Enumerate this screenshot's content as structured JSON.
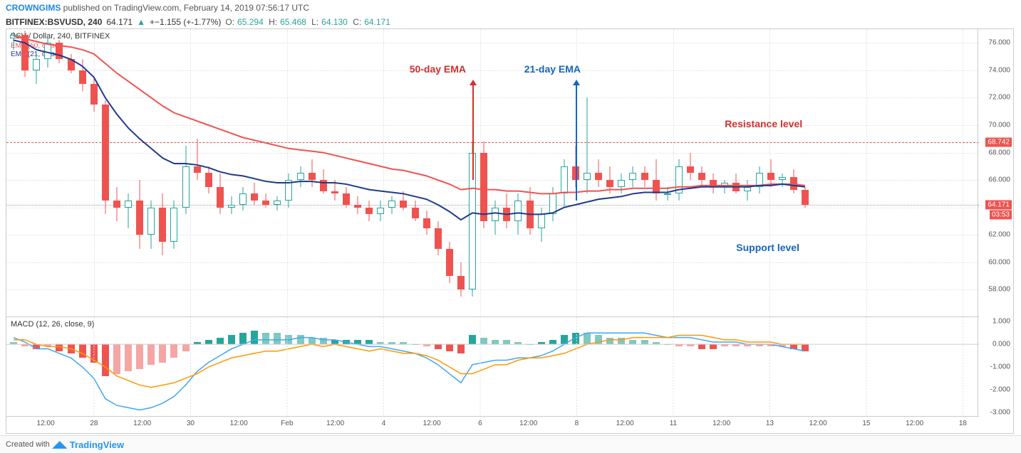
{
  "header": {
    "user": "CROWNGIMS",
    "published_text": "published on TradingView.com,",
    "date": "February 14, 2019 07:56:17 UTC"
  },
  "ticker": {
    "symbol": "BITFINEX:BSVUSD, 240",
    "price": "64.171",
    "change": "+−1.155 (+-1.77%)",
    "o_label": "O:",
    "o": "65.294",
    "h_label": "H:",
    "h": "65.468",
    "l_label": "L:",
    "l": "64.130",
    "c_label": "C:",
    "c": "64.171"
  },
  "price_pane": {
    "title": "BSV / Dollar, 240, BITFINEX",
    "ema50_label": "EMA (50, close)",
    "ema21_label": "EMA (21, close)",
    "ylim": [
      56,
      77
    ],
    "yticks": [
      58,
      60,
      62,
      64,
      66,
      68,
      70,
      72,
      74,
      76
    ],
    "resistance_level": 68.742,
    "current_price": 64.171,
    "countdown": "03:53",
    "grid_color": "#e0e0e0",
    "bg_color": "#ffffff",
    "candle_up_color": "#26a69a",
    "candle_down_color": "#ef5350",
    "ema50_color": "#ef5350",
    "ema21_color": "#1e3a8a",
    "candles": [
      {
        "x": 0,
        "o": 76.3,
        "h": 76.8,
        "l": 75.5,
        "c": 76.6
      },
      {
        "x": 1,
        "o": 76.6,
        "h": 76.9,
        "l": 73.5,
        "c": 74.0
      },
      {
        "x": 2,
        "o": 74.0,
        "h": 75.2,
        "l": 73.0,
        "c": 74.8
      },
      {
        "x": 3,
        "o": 74.8,
        "h": 76.4,
        "l": 74.2,
        "c": 76.0
      },
      {
        "x": 4,
        "o": 76.0,
        "h": 76.2,
        "l": 74.5,
        "c": 74.8
      },
      {
        "x": 5,
        "o": 74.8,
        "h": 75.2,
        "l": 73.8,
        "c": 74.0
      },
      {
        "x": 6,
        "o": 74.0,
        "h": 74.8,
        "l": 72.5,
        "c": 73.0
      },
      {
        "x": 7,
        "o": 73.0,
        "h": 73.5,
        "l": 71.0,
        "c": 71.5
      },
      {
        "x": 8,
        "o": 71.5,
        "h": 71.8,
        "l": 63.5,
        "c": 64.5
      },
      {
        "x": 9,
        "o": 64.5,
        "h": 65.5,
        "l": 63.0,
        "c": 64.0
      },
      {
        "x": 10,
        "o": 64.0,
        "h": 65.0,
        "l": 62.5,
        "c": 64.5
      },
      {
        "x": 11,
        "o": 64.5,
        "h": 66.0,
        "l": 61.0,
        "c": 62.0
      },
      {
        "x": 12,
        "o": 62.0,
        "h": 64.5,
        "l": 61.0,
        "c": 64.0
      },
      {
        "x": 13,
        "o": 64.0,
        "h": 65.0,
        "l": 60.5,
        "c": 61.5
      },
      {
        "x": 14,
        "o": 61.5,
        "h": 64.5,
        "l": 61.0,
        "c": 64.0
      },
      {
        "x": 15,
        "o": 64.0,
        "h": 68.5,
        "l": 63.5,
        "c": 67.0
      },
      {
        "x": 16,
        "o": 67.0,
        "h": 69.0,
        "l": 66.0,
        "c": 66.5
      },
      {
        "x": 17,
        "o": 66.5,
        "h": 67.0,
        "l": 65.0,
        "c": 65.5
      },
      {
        "x": 18,
        "o": 65.5,
        "h": 66.5,
        "l": 63.5,
        "c": 64.0
      },
      {
        "x": 19,
        "o": 64.0,
        "h": 64.8,
        "l": 63.5,
        "c": 64.2
      },
      {
        "x": 20,
        "o": 64.2,
        "h": 65.5,
        "l": 63.8,
        "c": 65.0
      },
      {
        "x": 21,
        "o": 65.0,
        "h": 65.8,
        "l": 64.2,
        "c": 64.5
      },
      {
        "x": 22,
        "o": 64.5,
        "h": 65.0,
        "l": 64.0,
        "c": 64.2
      },
      {
        "x": 23,
        "o": 64.2,
        "h": 64.8,
        "l": 63.8,
        "c": 64.5
      },
      {
        "x": 24,
        "o": 64.5,
        "h": 66.5,
        "l": 64.0,
        "c": 66.0
      },
      {
        "x": 25,
        "o": 66.0,
        "h": 67.0,
        "l": 65.5,
        "c": 66.5
      },
      {
        "x": 26,
        "o": 66.5,
        "h": 67.5,
        "l": 65.5,
        "c": 66.0
      },
      {
        "x": 27,
        "o": 66.0,
        "h": 66.8,
        "l": 65.0,
        "c": 65.2
      },
      {
        "x": 28,
        "o": 65.2,
        "h": 66.0,
        "l": 64.5,
        "c": 65.0
      },
      {
        "x": 29,
        "o": 65.0,
        "h": 65.5,
        "l": 64.0,
        "c": 64.2
      },
      {
        "x": 30,
        "o": 64.2,
        "h": 64.8,
        "l": 63.5,
        "c": 64.0
      },
      {
        "x": 31,
        "o": 64.0,
        "h": 64.5,
        "l": 63.0,
        "c": 63.5
      },
      {
        "x": 32,
        "o": 63.5,
        "h": 64.5,
        "l": 63.0,
        "c": 64.0
      },
      {
        "x": 33,
        "o": 64.0,
        "h": 64.8,
        "l": 63.5,
        "c": 64.5
      },
      {
        "x": 34,
        "o": 64.5,
        "h": 65.2,
        "l": 63.8,
        "c": 64.0
      },
      {
        "x": 35,
        "o": 64.0,
        "h": 64.5,
        "l": 63.0,
        "c": 63.2
      },
      {
        "x": 36,
        "o": 63.2,
        "h": 63.8,
        "l": 62.0,
        "c": 62.5
      },
      {
        "x": 37,
        "o": 62.5,
        "h": 63.0,
        "l": 60.5,
        "c": 61.0
      },
      {
        "x": 38,
        "o": 61.0,
        "h": 61.5,
        "l": 58.5,
        "c": 59.0
      },
      {
        "x": 39,
        "o": 59.0,
        "h": 60.0,
        "l": 57.5,
        "c": 58.0
      },
      {
        "x": 40,
        "o": 58.0,
        "h": 68.8,
        "l": 57.5,
        "c": 68.0
      },
      {
        "x": 41,
        "o": 68.0,
        "h": 68.8,
        "l": 62.5,
        "c": 63.0
      },
      {
        "x": 42,
        "o": 63.0,
        "h": 64.5,
        "l": 62.0,
        "c": 64.0
      },
      {
        "x": 43,
        "o": 64.0,
        "h": 65.0,
        "l": 62.5,
        "c": 63.0
      },
      {
        "x": 44,
        "o": 63.0,
        "h": 65.0,
        "l": 62.0,
        "c": 64.5
      },
      {
        "x": 45,
        "o": 64.5,
        "h": 65.5,
        "l": 62.0,
        "c": 62.5
      },
      {
        "x": 46,
        "o": 62.5,
        "h": 64.0,
        "l": 61.5,
        "c": 63.5
      },
      {
        "x": 47,
        "o": 63.5,
        "h": 65.5,
        "l": 63.0,
        "c": 65.0
      },
      {
        "x": 48,
        "o": 65.0,
        "h": 67.5,
        "l": 64.0,
        "c": 67.0
      },
      {
        "x": 49,
        "o": 67.0,
        "h": 68.5,
        "l": 65.5,
        "c": 66.0
      },
      {
        "x": 50,
        "o": 66.0,
        "h": 72.0,
        "l": 65.0,
        "c": 66.5
      },
      {
        "x": 51,
        "o": 66.5,
        "h": 67.5,
        "l": 65.5,
        "c": 66.0
      },
      {
        "x": 52,
        "o": 66.0,
        "h": 67.0,
        "l": 65.0,
        "c": 65.5
      },
      {
        "x": 53,
        "o": 65.5,
        "h": 66.5,
        "l": 65.0,
        "c": 66.0
      },
      {
        "x": 54,
        "o": 66.0,
        "h": 67.0,
        "l": 65.5,
        "c": 66.5
      },
      {
        "x": 55,
        "o": 66.5,
        "h": 67.0,
        "l": 65.5,
        "c": 66.0
      },
      {
        "x": 56,
        "o": 66.0,
        "h": 67.5,
        "l": 64.5,
        "c": 65.0
      },
      {
        "x": 57,
        "o": 65.0,
        "h": 65.5,
        "l": 64.5,
        "c": 65.0
      },
      {
        "x": 58,
        "o": 65.0,
        "h": 67.5,
        "l": 64.5,
        "c": 67.0
      },
      {
        "x": 59,
        "o": 67.0,
        "h": 68.0,
        "l": 66.0,
        "c": 66.5
      },
      {
        "x": 60,
        "o": 66.5,
        "h": 67.0,
        "l": 65.5,
        "c": 66.0
      },
      {
        "x": 61,
        "o": 66.0,
        "h": 66.5,
        "l": 65.0,
        "c": 65.5
      },
      {
        "x": 62,
        "o": 65.5,
        "h": 66.0,
        "l": 65.0,
        "c": 65.8
      },
      {
        "x": 63,
        "o": 65.8,
        "h": 66.5,
        "l": 65.0,
        "c": 65.2
      },
      {
        "x": 64,
        "o": 65.2,
        "h": 66.0,
        "l": 64.5,
        "c": 65.5
      },
      {
        "x": 65,
        "o": 65.5,
        "h": 67.0,
        "l": 65.0,
        "c": 66.5
      },
      {
        "x": 66,
        "o": 66.5,
        "h": 67.5,
        "l": 65.5,
        "c": 66.0
      },
      {
        "x": 67,
        "o": 66.0,
        "h": 66.5,
        "l": 65.5,
        "c": 66.2
      },
      {
        "x": 68,
        "o": 66.2,
        "h": 66.8,
        "l": 65.0,
        "c": 65.3
      },
      {
        "x": 69,
        "o": 65.3,
        "h": 65.5,
        "l": 64.0,
        "c": 64.2
      }
    ],
    "ema50": [
      76.5,
      76.3,
      76.1,
      75.9,
      75.8,
      75.7,
      75.5,
      75.2,
      74.5,
      73.8,
      73.2,
      72.6,
      72.0,
      71.4,
      70.9,
      70.6,
      70.3,
      70.0,
      69.7,
      69.4,
      69.1,
      68.9,
      68.7,
      68.5,
      68.3,
      68.2,
      68.1,
      68.0,
      67.8,
      67.6,
      67.4,
      67.2,
      67.0,
      66.8,
      66.7,
      66.5,
      66.3,
      66.0,
      65.7,
      65.3,
      65.4,
      65.3,
      65.3,
      65.2,
      65.2,
      65.1,
      65.0,
      65.0,
      65.1,
      65.1,
      65.2,
      65.2,
      65.3,
      65.3,
      65.4,
      65.4,
      65.4,
      65.4,
      65.5,
      65.5,
      65.6,
      65.6,
      65.6,
      65.6,
      65.6,
      65.6,
      65.7,
      65.7,
      65.7,
      65.6
    ],
    "ema21": [
      76.2,
      76.0,
      75.5,
      75.3,
      75.1,
      74.8,
      74.3,
      73.5,
      72.0,
      70.8,
      69.8,
      69.0,
      68.3,
      67.6,
      67.2,
      67.2,
      67.1,
      66.9,
      66.6,
      66.4,
      66.3,
      66.1,
      65.9,
      65.8,
      65.8,
      65.9,
      65.9,
      65.8,
      65.8,
      65.7,
      65.5,
      65.3,
      65.2,
      65.1,
      65.0,
      64.8,
      64.6,
      64.2,
      63.7,
      63.1,
      63.6,
      63.5,
      63.6,
      63.5,
      63.6,
      63.5,
      63.5,
      63.6,
      64.0,
      64.2,
      64.4,
      64.6,
      64.7,
      64.8,
      65.0,
      65.1,
      65.1,
      65.1,
      65.3,
      65.4,
      65.5,
      65.5,
      65.5,
      65.5,
      65.5,
      65.6,
      65.6,
      65.7,
      65.6,
      65.5
    ]
  },
  "macd_pane": {
    "label": "MACD (12, 26, close, 9)",
    "ylim": [
      -3.2,
      1.2
    ],
    "yticks": [
      -3,
      -2,
      -1,
      0,
      1
    ],
    "macd_line_color": "#42a5f5",
    "signal_line_color": "#ff9800",
    "histogram": [
      0.1,
      -0.1,
      -0.2,
      -0.1,
      -0.3,
      -0.4,
      -0.6,
      -0.8,
      -1.4,
      -1.3,
      -1.2,
      -1.1,
      -0.9,
      -0.8,
      -0.6,
      -0.3,
      0.1,
      0.2,
      0.3,
      0.4,
      0.5,
      0.6,
      0.5,
      0.5,
      0.4,
      0.4,
      0.3,
      0.3,
      0.2,
      0.2,
      0.2,
      0.2,
      0.1,
      0.1,
      0.1,
      0.0,
      -0.1,
      -0.2,
      -0.3,
      -0.4,
      0.4,
      0.3,
      0.2,
      0.2,
      0.1,
      0.0,
      0.1,
      0.2,
      0.4,
      0.5,
      0.5,
      0.4,
      0.3,
      0.3,
      0.2,
      0.2,
      0.1,
      0.0,
      -0.1,
      -0.1,
      -0.2,
      -0.2,
      -0.1,
      -0.1,
      -0.1,
      -0.1,
      -0.1,
      -0.1,
      -0.2,
      -0.3
    ],
    "histogram_colors": [
      "pos-weak",
      "neg-weak",
      "neg-strong",
      "neg-weak",
      "neg-strong",
      "neg-strong",
      "neg-strong",
      "neg-strong",
      "neg-strong",
      "neg-weak",
      "neg-weak",
      "neg-weak",
      "neg-weak",
      "neg-weak",
      "neg-weak",
      "neg-weak",
      "pos-strong",
      "pos-strong",
      "pos-strong",
      "pos-strong",
      "pos-strong",
      "pos-strong",
      "pos-weak",
      "pos-weak",
      "pos-weak",
      "pos-weak",
      "pos-weak",
      "pos-weak",
      "pos-strong",
      "pos-strong",
      "pos-strong",
      "pos-strong",
      "pos-weak",
      "pos-weak",
      "pos-weak",
      "pos-weak",
      "neg-weak",
      "neg-strong",
      "neg-strong",
      "neg-strong",
      "pos-strong",
      "pos-weak",
      "pos-weak",
      "pos-weak",
      "pos-weak",
      "pos-weak",
      "pos-strong",
      "pos-strong",
      "pos-strong",
      "pos-strong",
      "pos-weak",
      "pos-weak",
      "pos-weak",
      "pos-weak",
      "pos-weak",
      "pos-weak",
      "pos-weak",
      "pos-weak",
      "neg-weak",
      "neg-weak",
      "neg-strong",
      "neg-strong",
      "neg-weak",
      "neg-weak",
      "neg-weak",
      "neg-weak",
      "neg-weak",
      "neg-weak",
      "neg-strong",
      "neg-strong"
    ],
    "macd_line": [
      0.3,
      0.1,
      -0.2,
      -0.2,
      -0.4,
      -0.6,
      -1.0,
      -1.5,
      -2.4,
      -2.7,
      -2.8,
      -2.9,
      -2.8,
      -2.6,
      -2.3,
      -1.8,
      -1.2,
      -0.8,
      -0.5,
      -0.2,
      0.0,
      0.2,
      0.2,
      0.2,
      0.2,
      0.3,
      0.3,
      0.2,
      0.2,
      0.1,
      0.0,
      -0.1,
      -0.1,
      -0.2,
      -0.3,
      -0.4,
      -0.6,
      -0.9,
      -1.3,
      -1.7,
      -0.9,
      -0.8,
      -0.7,
      -0.7,
      -0.6,
      -0.6,
      -0.5,
      -0.3,
      0.0,
      0.3,
      0.5,
      0.5,
      0.5,
      0.5,
      0.5,
      0.5,
      0.4,
      0.3,
      0.3,
      0.3,
      0.2,
      0.1,
      0.1,
      0.1,
      0.0,
      0.0,
      0.0,
      -0.1,
      -0.2,
      -0.3
    ],
    "signal_line": [
      0.2,
      0.2,
      0.0,
      -0.1,
      -0.1,
      -0.2,
      -0.4,
      -0.7,
      -1.0,
      -1.4,
      -1.6,
      -1.8,
      -1.9,
      -1.8,
      -1.7,
      -1.5,
      -1.3,
      -1.0,
      -0.8,
      -0.6,
      -0.5,
      -0.4,
      -0.3,
      -0.3,
      -0.2,
      -0.1,
      0.0,
      -0.1,
      0.0,
      -0.1,
      -0.2,
      -0.3,
      -0.2,
      -0.3,
      -0.4,
      -0.4,
      -0.5,
      -0.7,
      -1.0,
      -1.3,
      -1.3,
      -1.1,
      -0.9,
      -0.9,
      -0.7,
      -0.6,
      -0.6,
      -0.5,
      -0.4,
      -0.2,
      0.0,
      0.1,
      0.2,
      0.2,
      0.3,
      0.3,
      0.3,
      0.3,
      0.4,
      0.4,
      0.4,
      0.3,
      0.2,
      0.2,
      0.1,
      0.1,
      0.1,
      0.0,
      0.0,
      0.0
    ]
  },
  "x_axis": {
    "labels": [
      {
        "x": 4,
        "text": "12:00"
      },
      {
        "x": 10,
        "text": "28"
      },
      {
        "x": 16,
        "text": "12:00"
      },
      {
        "x": 22,
        "text": "30"
      },
      {
        "x": 28,
        "text": "12:00"
      },
      {
        "x": 34,
        "text": "Feb"
      },
      {
        "x": 40,
        "text": "12:00"
      },
      {
        "x": 46,
        "text": "4"
      },
      {
        "x": 52,
        "text": "12:00"
      },
      {
        "x": 58,
        "text": "6"
      },
      {
        "x": 64,
        "text": "12:00"
      },
      {
        "x": 70,
        "text": "8"
      },
      {
        "x": 76,
        "text": "12:00"
      },
      {
        "x": 82,
        "text": "11"
      },
      {
        "x": 88,
        "text": "12:00"
      },
      {
        "x": 94,
        "text": "13"
      },
      {
        "x": 100,
        "text": "12:00"
      },
      {
        "x": 106,
        "text": "15"
      },
      {
        "x": 112,
        "text": "12:00"
      },
      {
        "x": 118,
        "text": "18"
      }
    ],
    "x_major": [
      10,
      22,
      34,
      46,
      58,
      70,
      82,
      94,
      106,
      118
    ],
    "candle_xmap_scale": 16.1,
    "candle_xmap_offset": 10
  },
  "annotations": {
    "ema50_label": "50-day EMA",
    "ema21_label": "21-day EMA",
    "resistance_label": "Resistance level",
    "support_label": "Support level"
  },
  "footer": {
    "text": "Created with",
    "brand": "TradingView"
  }
}
